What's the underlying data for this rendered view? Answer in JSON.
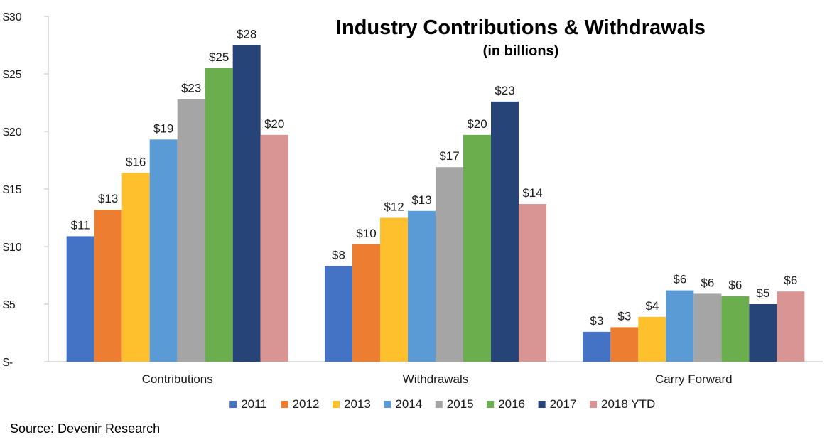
{
  "source": "Source: Devenir Research",
  "chart_data": {
    "type": "bar",
    "title": "Industry Contributions & Withdrawals",
    "subtitle": "(in billions)",
    "categories": [
      "Contributions",
      "Withdrawals",
      "Carry Forward"
    ],
    "ylim": [
      0,
      30
    ],
    "yticks": [
      0,
      5,
      10,
      15,
      20,
      25,
      30
    ],
    "ytick_labels": [
      "$-",
      "$5",
      "$10",
      "$15",
      "$20",
      "$25",
      "$30"
    ],
    "grid": false,
    "legend_position": "bottom",
    "series": [
      {
        "name": "2011",
        "color": "#4472C4",
        "values": [
          10.9,
          8.3,
          2.6
        ],
        "labels": [
          "$11",
          "$8",
          "$3"
        ]
      },
      {
        "name": "2012",
        "color": "#ED7D31",
        "values": [
          13.2,
          10.2,
          3.0
        ],
        "labels": [
          "$13",
          "$10",
          "$3"
        ]
      },
      {
        "name": "2013",
        "color": "#FFC02D",
        "values": [
          16.4,
          12.5,
          3.9
        ],
        "labels": [
          "$16",
          "$12",
          "$4"
        ]
      },
      {
        "name": "2014",
        "color": "#5B9BD5",
        "values": [
          19.3,
          13.1,
          6.2
        ],
        "labels": [
          "$19",
          "$13",
          "$6"
        ]
      },
      {
        "name": "2015",
        "color": "#A5A5A5",
        "values": [
          22.8,
          16.9,
          5.9
        ],
        "labels": [
          "$23",
          "$17",
          "$6"
        ]
      },
      {
        "name": "2016",
        "color": "#6AAE4E",
        "values": [
          25.5,
          19.7,
          5.7
        ],
        "labels": [
          "$25",
          "$20",
          "$6"
        ]
      },
      {
        "name": "2017",
        "color": "#264478",
        "values": [
          27.5,
          22.6,
          5.0
        ],
        "labels": [
          "$28",
          "$23",
          "$5"
        ]
      },
      {
        "name": "2018 YTD",
        "color": "#D99594",
        "values": [
          19.7,
          13.7,
          6.1
        ],
        "labels": [
          "$20",
          "$14",
          "$6"
        ]
      }
    ]
  }
}
